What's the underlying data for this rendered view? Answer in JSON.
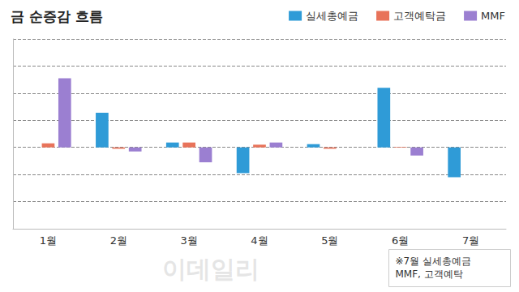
{
  "chart_data": {
    "type": "bar",
    "title": "금 순증감 흐름",
    "categories": [
      "1월",
      "2월",
      "3월",
      "4월",
      "5월",
      "6월",
      "7월"
    ],
    "series": [
      {
        "name": "실세총예금",
        "color": "#2f9bd7",
        "values": [
          null,
          1.28,
          0.18,
          -0.95,
          0.12,
          2.2,
          -1.1
        ]
      },
      {
        "name": "고객예탁금",
        "color": "#e8735a",
        "values": [
          0.15,
          -0.05,
          0.18,
          0.1,
          -0.05,
          0.02,
          null
        ]
      },
      {
        "name": "MMF",
        "color": "#9b7fd1",
        "values": [
          2.55,
          -0.15,
          -0.55,
          0.18,
          0,
          -0.3,
          null
        ]
      }
    ],
    "ylim": [
      -3,
      4
    ],
    "yticks": [
      -3,
      -2,
      -1,
      0,
      1,
      2,
      3,
      4
    ],
    "grid": true,
    "tick_labels": "x",
    "legend": "top-right",
    "annotations": [
      "※7월 실세총예금",
      "MMF, 고객예탁"
    ],
    "watermark": "이데일리"
  }
}
